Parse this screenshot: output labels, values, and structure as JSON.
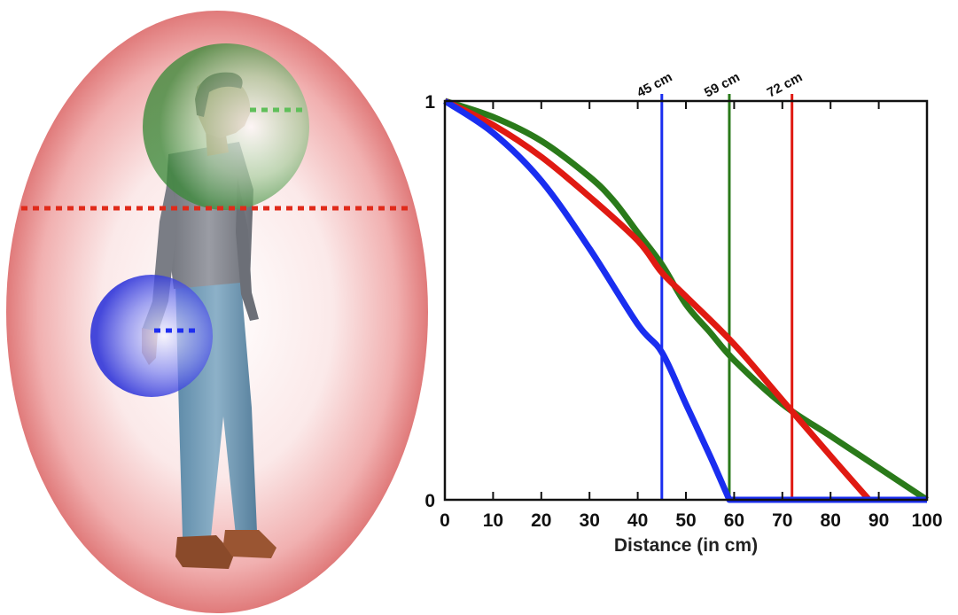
{
  "illustration": {
    "zones": [
      {
        "name": "peripersonal-body",
        "color": "#e03a3a"
      },
      {
        "name": "peripersonal-head",
        "color": "#2f8a2f"
      },
      {
        "name": "peripersonal-hand",
        "color": "#1e2ee8"
      }
    ]
  },
  "chart_data": {
    "type": "line",
    "title": "",
    "xlabel": "Distance (in cm)",
    "ylabel": "",
    "xlim": [
      0,
      100
    ],
    "ylim": [
      0,
      1
    ],
    "xticks": [
      0,
      10,
      20,
      30,
      40,
      50,
      60,
      70,
      80,
      90,
      100
    ],
    "yticks": [
      0,
      1
    ],
    "grid": false,
    "legend": "none",
    "series": [
      {
        "color": "#2a7a1a",
        "x": [
          0,
          10,
          20,
          30,
          35,
          40,
          45,
          50,
          55,
          60,
          70,
          80,
          90,
          100
        ],
        "y": [
          1.0,
          0.96,
          0.9,
          0.81,
          0.75,
          0.67,
          0.59,
          0.49,
          0.42,
          0.35,
          0.24,
          0.16,
          0.08,
          0.0
        ]
      },
      {
        "color": "#e01a12",
        "x": [
          0,
          10,
          20,
          30,
          40,
          45,
          50,
          60,
          70,
          80,
          88,
          100
        ],
        "y": [
          1.0,
          0.94,
          0.86,
          0.76,
          0.65,
          0.57,
          0.51,
          0.39,
          0.25,
          0.11,
          0.0,
          0.0
        ]
      },
      {
        "color": "#1a2ef0",
        "x": [
          0,
          10,
          20,
          30,
          40,
          45,
          50,
          55,
          59,
          100
        ],
        "y": [
          1.0,
          0.92,
          0.8,
          0.63,
          0.44,
          0.37,
          0.24,
          0.11,
          0.0,
          0.0
        ]
      }
    ],
    "vlines": [
      {
        "x": 45,
        "label": "45 cm",
        "color": "#1a2ef0"
      },
      {
        "x": 59,
        "label": "59 cm",
        "color": "#2a7a1a"
      },
      {
        "x": 72,
        "label": "72 cm",
        "color": "#e01a12"
      }
    ]
  }
}
